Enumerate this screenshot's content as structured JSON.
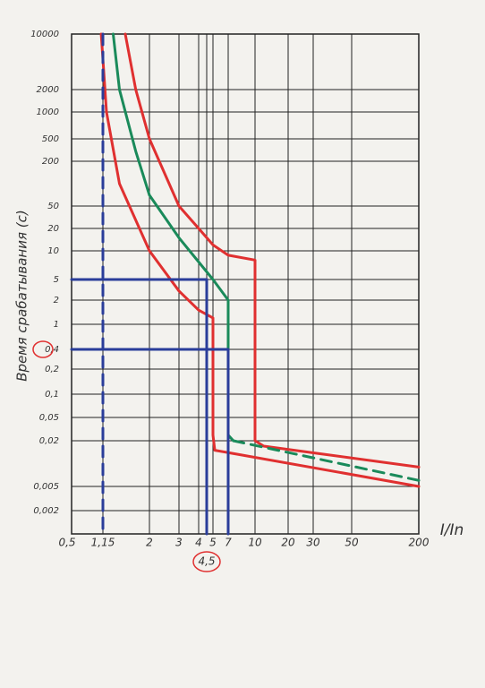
{
  "chart_data": {
    "type": "line",
    "ylabel": "Время срабатывания (с)",
    "xlabel": "I/In",
    "log_scale": true,
    "grid": true,
    "xlim": [
      0.5,
      200
    ],
    "ylim": [
      0.001,
      10000
    ],
    "xticks": [
      {
        "value": 0.5,
        "label": "0,5"
      },
      {
        "value": 1.15,
        "label": "1,15",
        "color": "#2a3d9a"
      },
      2,
      3,
      4,
      {
        "value": 4.5,
        "label": "4,5",
        "color": "#2a3d9a",
        "circled": true
      },
      5,
      7,
      10,
      20,
      30,
      50,
      200
    ],
    "yticks": [
      10000,
      2000,
      1000,
      500,
      200,
      50,
      20,
      10,
      5,
      2,
      1,
      {
        "value": 0.4,
        "label": "0,4",
        "color": "#2a3d9a",
        "circled": true
      },
      {
        "value": 0.2,
        "label": "0,2"
      },
      {
        "value": 0.1,
        "label": "0,1"
      },
      {
        "value": 0.05,
        "label": "0,05"
      },
      {
        "value": 0.02,
        "label": "0,02"
      },
      {
        "value": 0.005,
        "label": "0,005"
      },
      {
        "value": 0.002,
        "label": "0,002"
      }
    ],
    "series": [
      {
        "color": "#e03030",
        "x": [
          1.5,
          1.7,
          2,
          3,
          4,
          5,
          7,
          10,
          10,
          12,
          200
        ],
        "values": [
          10000,
          2000,
          500,
          50,
          20,
          12,
          9,
          8,
          0.02,
          0.017,
          0.009
        ]
      },
      {
        "color": "#e03030",
        "x": [
          1.1,
          1.2,
          1.4,
          2,
          3,
          4,
          5,
          5,
          5.2,
          200
        ],
        "values": [
          10000,
          1000,
          100,
          10,
          3,
          1.5,
          1.2,
          0.025,
          0.015,
          0.005
        ]
      },
      {
        "color": "#1a8a5a",
        "x": [
          1.3,
          1.4,
          1.7,
          2,
          3,
          5,
          7,
          7,
          7.5
        ],
        "values": [
          10000,
          2000,
          300,
          70,
          15,
          5,
          2,
          0.025,
          0.02
        ]
      },
      {
        "color": "#1a8a5a",
        "dashed": true,
        "x": [
          7.5,
          200
        ],
        "values": [
          0.02,
          0.006
        ]
      },
      {
        "color": "#2a3d9a",
        "dashed": true,
        "x": [
          1.15,
          1.15
        ],
        "values": [
          10000,
          0.001
        ]
      },
      {
        "color": "#2a3d9a",
        "x": [
          0.5,
          4.5,
          4.5
        ],
        "values": [
          5,
          5,
          0.001
        ]
      },
      {
        "color": "#2a3d9a",
        "x": [
          0.5,
          7,
          7
        ],
        "values": [
          0.4,
          0.4,
          0.001
        ]
      }
    ]
  }
}
